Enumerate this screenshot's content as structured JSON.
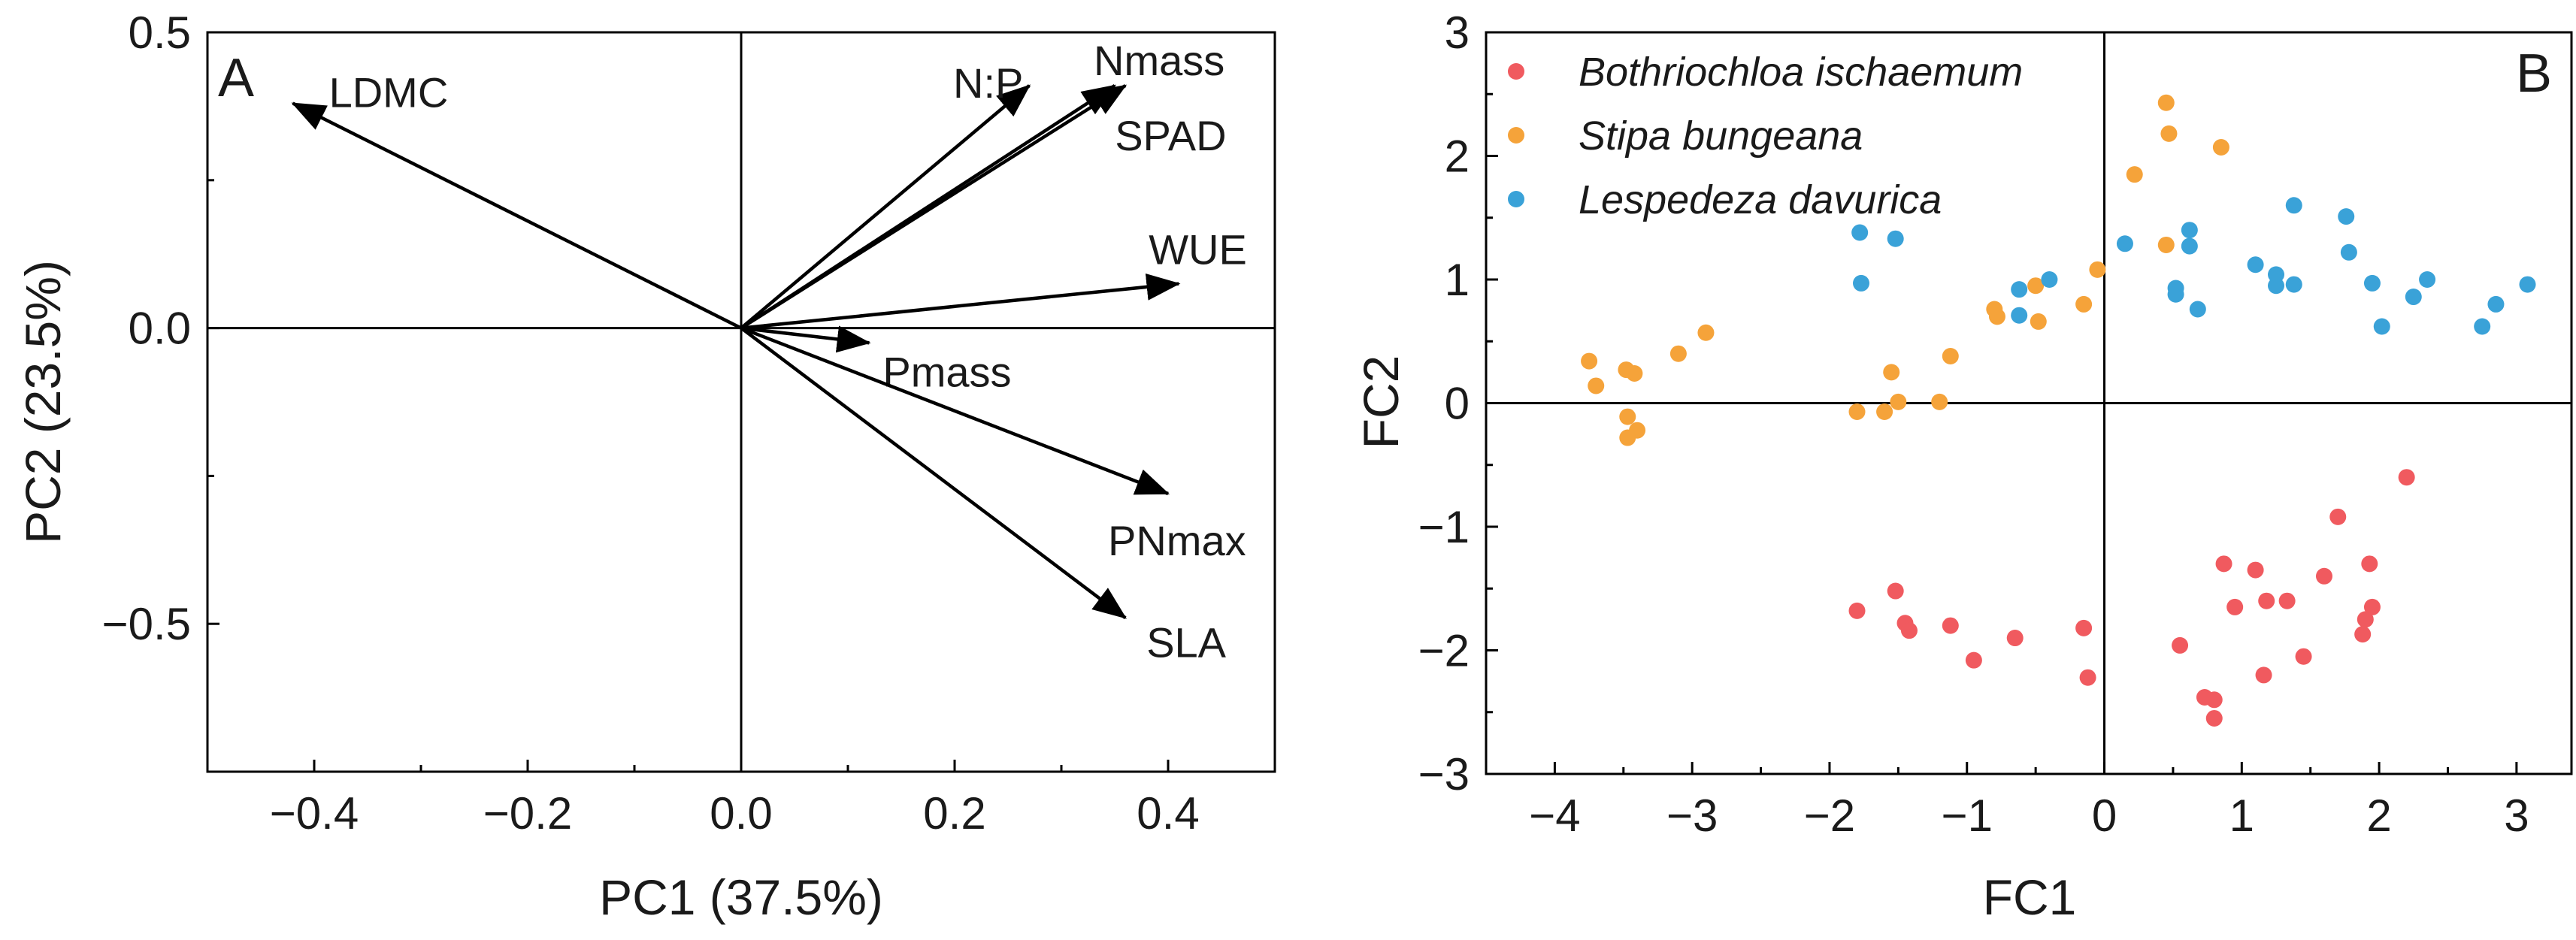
{
  "chart_data": [
    {
      "type": "scatter",
      "subtype": "pca-biplot-loadings",
      "panel_label": "A",
      "xlabel": "PC1 (37.5%)",
      "ylabel": "PC2 (23.5%)",
      "xlim": [
        -0.5,
        0.5
      ],
      "ylim": [
        -0.75,
        0.5
      ],
      "xticks": [
        -0.4,
        -0.2,
        0.0,
        0.2,
        0.4
      ],
      "xtick_labels": [
        "−0.4",
        "−0.2",
        "0.0",
        "0.2",
        "0.4"
      ],
      "yticks": [
        -0.5,
        0.0,
        0.5
      ],
      "ytick_labels": [
        "−0.5",
        "0.0",
        "0.5"
      ],
      "vectors": [
        {
          "name": "LDMC",
          "x": -0.42,
          "y": 0.38
        },
        {
          "name": "N:P",
          "x": 0.27,
          "y": 0.41
        },
        {
          "name": "Nmass",
          "x": 0.35,
          "y": 0.41
        },
        {
          "name": "SPAD",
          "x": 0.36,
          "y": 0.41
        },
        {
          "name": "WUE",
          "x": 0.41,
          "y": 0.075
        },
        {
          "name": "Pmass",
          "x": 0.12,
          "y": -0.025
        },
        {
          "name": "PNmax",
          "x": 0.4,
          "y": -0.28
        },
        {
          "name": "SLA",
          "x": 0.36,
          "y": -0.49
        }
      ]
    },
    {
      "type": "scatter",
      "panel_label": "B",
      "xlabel": "FC1",
      "ylabel": "FC2",
      "xlim": [
        -4.5,
        3.4
      ],
      "ylim": [
        -3,
        3
      ],
      "xticks": [
        -4,
        -3,
        -2,
        -1,
        0,
        1,
        2,
        3
      ],
      "xtick_labels": [
        "−4",
        "−3",
        "−2",
        "−1",
        "0",
        "1",
        "2",
        "3"
      ],
      "yticks": [
        -3,
        -2,
        -1,
        0,
        1,
        2,
        3
      ],
      "ytick_labels": [
        "−3",
        "−2",
        "−1",
        "0",
        "1",
        "2",
        "3"
      ],
      "legend_position": "top-left",
      "series": [
        {
          "name": "Bothriochloa ischaemum",
          "color": "#f05a5f",
          "points": [
            [
              2.2,
              -0.6
            ],
            [
              1.7,
              -0.92
            ],
            [
              0.87,
              -1.3
            ],
            [
              1.1,
              -1.35
            ],
            [
              1.93,
              -1.3
            ],
            [
              1.18,
              -1.6
            ],
            [
              1.33,
              -1.6
            ],
            [
              1.6,
              -1.4
            ],
            [
              0.95,
              -1.65
            ],
            [
              1.95,
              -1.65
            ],
            [
              1.9,
              -1.75
            ],
            [
              1.88,
              -1.87
            ],
            [
              0.55,
              -1.96
            ],
            [
              1.45,
              -2.05
            ],
            [
              1.16,
              -2.2
            ],
            [
              0.73,
              -2.38
            ],
            [
              0.8,
              -2.4
            ],
            [
              0.8,
              -2.55
            ],
            [
              -1.8,
              -1.68
            ],
            [
              -1.52,
              -1.52
            ],
            [
              -1.45,
              -1.78
            ],
            [
              -1.42,
              -1.84
            ],
            [
              -1.12,
              -1.8
            ],
            [
              -0.65,
              -1.9
            ],
            [
              -0.15,
              -1.82
            ],
            [
              -0.95,
              -2.08
            ],
            [
              -0.12,
              -2.22
            ]
          ]
        },
        {
          "name": "Stipa bungeana",
          "color": "#f5a33a",
          "points": [
            [
              0.45,
              2.43
            ],
            [
              0.47,
              2.18
            ],
            [
              0.85,
              2.07
            ],
            [
              0.22,
              1.85
            ],
            [
              0.45,
              1.28
            ],
            [
              -0.05,
              1.08
            ],
            [
              -0.5,
              0.95
            ],
            [
              -0.15,
              0.8
            ],
            [
              -0.8,
              0.76
            ],
            [
              -0.78,
              0.7
            ],
            [
              -0.48,
              0.66
            ],
            [
              -1.12,
              0.38
            ],
            [
              -1.55,
              0.25
            ],
            [
              -2.9,
              0.57
            ],
            [
              -3.1,
              0.4
            ],
            [
              -3.75,
              0.34
            ],
            [
              -3.48,
              0.27
            ],
            [
              -3.42,
              0.24
            ],
            [
              -3.7,
              0.14
            ],
            [
              -1.5,
              0.01
            ],
            [
              -1.2,
              0.01
            ],
            [
              -1.8,
              -0.07
            ],
            [
              -1.6,
              -0.07
            ],
            [
              -3.47,
              -0.11
            ],
            [
              -3.4,
              -0.22
            ],
            [
              -3.47,
              -0.28
            ]
          ]
        },
        {
          "name": "Lespedeza davurica",
          "color": "#3aa2d8",
          "points": [
            [
              -1.78,
              1.38
            ],
            [
              -1.52,
              1.33
            ],
            [
              -1.77,
              0.97
            ],
            [
              -0.62,
              0.92
            ],
            [
              -0.4,
              1.0
            ],
            [
              -0.62,
              0.71
            ],
            [
              0.15,
              1.29
            ],
            [
              0.52,
              0.93
            ],
            [
              0.52,
              0.88
            ],
            [
              0.62,
              1.4
            ],
            [
              0.62,
              1.27
            ],
            [
              0.68,
              0.76
            ],
            [
              1.38,
              1.6
            ],
            [
              1.76,
              1.51
            ],
            [
              1.1,
              1.12
            ],
            [
              1.25,
              1.04
            ],
            [
              1.25,
              0.95
            ],
            [
              1.38,
              0.96
            ],
            [
              1.78,
              1.22
            ],
            [
              1.95,
              0.97
            ],
            [
              2.02,
              0.62
            ],
            [
              2.25,
              0.86
            ],
            [
              2.35,
              1.0
            ],
            [
              2.75,
              0.62
            ],
            [
              2.85,
              0.8
            ],
            [
              3.08,
              0.96
            ]
          ]
        }
      ]
    }
  ]
}
